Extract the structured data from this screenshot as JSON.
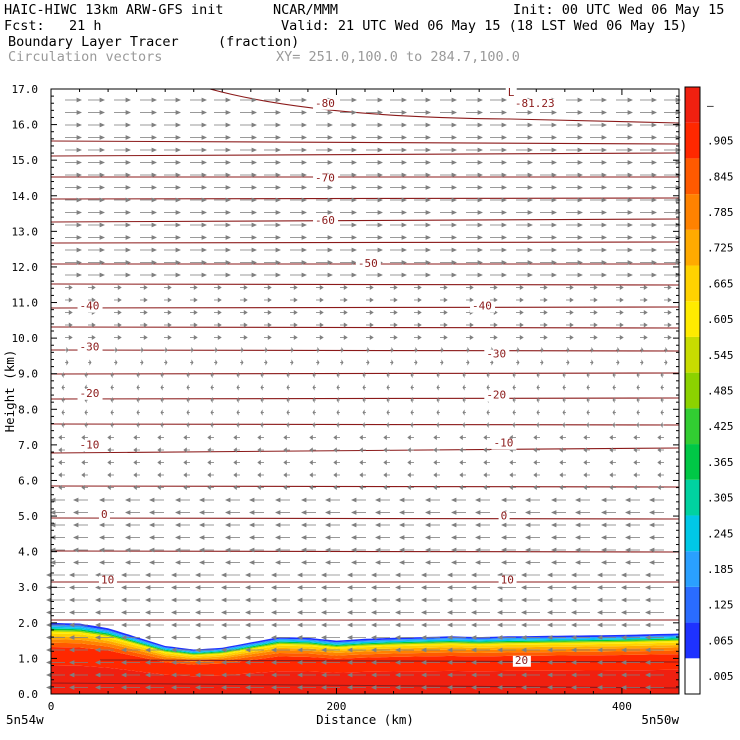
{
  "header": {
    "model_line": "HAIC-HIWC 13km ARW-GFS init",
    "org": "NCAR/MMM",
    "init": "Init: 00 UTC Wed 06 May 15",
    "fcst": "Fcst:   21 h",
    "valid": "Valid: 21 UTC Wed 06 May 15 (18 LST Wed 06 May 15)",
    "field": "Boundary Layer Tracer",
    "units": "(fraction)",
    "vectors": "Circulation vectors",
    "xy": "XY= 251.0,100.0 to 284.7,100.0"
  },
  "chart_data": {
    "type": "heatmap",
    "title": "Boundary Layer Tracer",
    "units": "(fraction)",
    "xlabel": "Distance (km)",
    "ylabel": "Height (km)",
    "xlim": [
      0,
      440
    ],
    "ylim": [
      0,
      17
    ],
    "x_ticks": [
      "0",
      "200",
      "400"
    ],
    "x_endpoint_labels": [
      "5n54w",
      "5n50w"
    ],
    "y_ticks": [
      "0.0",
      "1.0",
      "2.0",
      "3.0",
      "4.0",
      "5.0",
      "6.0",
      "7.0",
      "8.0",
      "9.0",
      "10.0",
      "11.0",
      "12.0",
      "13.0",
      "14.0",
      "15.0",
      "16.0",
      "17.0"
    ],
    "colorbar": {
      "labels": [
        ".005",
        ".065",
        ".125",
        ".185",
        ".245",
        ".305",
        ".365",
        ".425",
        ".485",
        ".545",
        ".605",
        ".665",
        ".725",
        ".785",
        ".845",
        ".905",
        "–"
      ],
      "colors": [
        "#ffffff",
        "#1e32ff",
        "#2a6cff",
        "#2aa0ff",
        "#00c8e6",
        "#00d2a0",
        "#00c846",
        "#32cd32",
        "#8cd200",
        "#c8dc00",
        "#ffeb00",
        "#ffd200",
        "#ffaa00",
        "#ff8200",
        "#ff5a00",
        "#ff2800",
        "#f02010"
      ]
    },
    "bl_top_km": [
      [
        0,
        2.0
      ],
      [
        20,
        1.98
      ],
      [
        40,
        1.85
      ],
      [
        60,
        1.6
      ],
      [
        80,
        1.35
      ],
      [
        100,
        1.25
      ],
      [
        120,
        1.3
      ],
      [
        140,
        1.45
      ],
      [
        160,
        1.6
      ],
      [
        180,
        1.58
      ],
      [
        200,
        1.5
      ],
      [
        220,
        1.55
      ],
      [
        240,
        1.58
      ],
      [
        260,
        1.6
      ],
      [
        280,
        1.62
      ],
      [
        300,
        1.6
      ],
      [
        320,
        1.62
      ],
      [
        340,
        1.63
      ],
      [
        360,
        1.64
      ],
      [
        380,
        1.65
      ],
      [
        400,
        1.66
      ],
      [
        420,
        1.68
      ],
      [
        440,
        1.7
      ]
    ],
    "isotherm_labels": [
      {
        "text": "-80",
        "x": 185,
        "y": 16.5
      },
      {
        "text": "-81.23",
        "x": 325,
        "y": 16.5
      },
      {
        "text": "L",
        "x": 320,
        "y": 16.8
      },
      {
        "text": "-70",
        "x": 185,
        "y": 14.4
      },
      {
        "text": "-60",
        "x": 185,
        "y": 13.2
      },
      {
        "text": "-50",
        "x": 215,
        "y": 12.0
      },
      {
        "text": "-40",
        "x": 20,
        "y": 10.8
      },
      {
        "text": "-40",
        "x": 295,
        "y": 10.8
      },
      {
        "text": "-30",
        "x": 20,
        "y": 9.65
      },
      {
        "text": "-30",
        "x": 305,
        "y": 9.45
      },
      {
        "text": "-20",
        "x": 20,
        "y": 8.35
      },
      {
        "text": "-20",
        "x": 305,
        "y": 8.3
      },
      {
        "text": "-10",
        "x": 20,
        "y": 6.9
      },
      {
        "text": "-10",
        "x": 310,
        "y": 6.95
      },
      {
        "text": "0",
        "x": 35,
        "y": 4.95
      },
      {
        "text": "0",
        "x": 315,
        "y": 4.9
      },
      {
        "text": "10",
        "x": 35,
        "y": 3.1
      },
      {
        "text": "10",
        "x": 315,
        "y": 3.1
      },
      {
        "text": "20",
        "x": 325,
        "y": 0.85
      }
    ]
  }
}
